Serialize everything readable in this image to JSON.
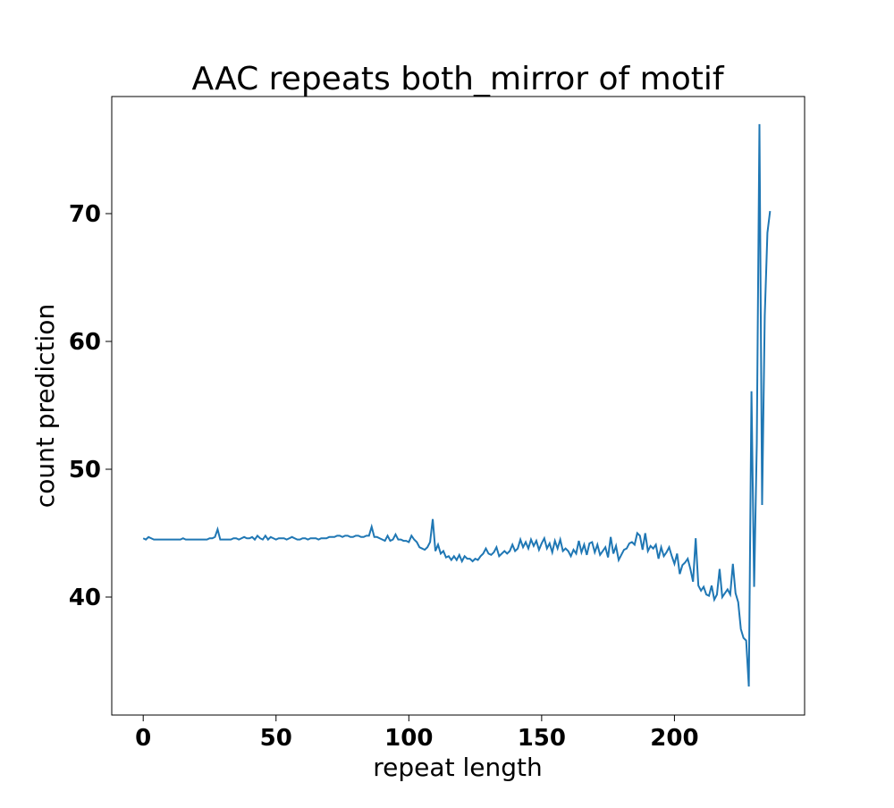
{
  "chart_data": {
    "type": "line",
    "title": "AAC repeats both_mirror of motif",
    "xlabel": "repeat length",
    "ylabel": "count prediction",
    "xlim": [
      -11.85,
      249
    ],
    "ylim": [
      30.77,
      79.16
    ],
    "xticks": [
      0,
      50,
      100,
      150,
      200
    ],
    "yticks": [
      40,
      50,
      60,
      70
    ],
    "x": [
      0,
      1,
      2,
      3,
      4,
      5,
      6,
      7,
      8,
      9,
      10,
      11,
      12,
      13,
      14,
      15,
      16,
      17,
      18,
      19,
      20,
      21,
      22,
      23,
      24,
      25,
      26,
      27,
      28,
      29,
      30,
      31,
      32,
      33,
      34,
      35,
      36,
      37,
      38,
      39,
      40,
      41,
      42,
      43,
      44,
      45,
      46,
      47,
      48,
      49,
      50,
      51,
      52,
      53,
      54,
      55,
      56,
      57,
      58,
      59,
      60,
      61,
      62,
      63,
      64,
      65,
      66,
      67,
      68,
      69,
      70,
      71,
      72,
      73,
      74,
      75,
      76,
      77,
      78,
      79,
      80,
      81,
      82,
      83,
      84,
      85,
      86,
      87,
      88,
      89,
      90,
      91,
      92,
      93,
      94,
      95,
      96,
      97,
      98,
      99,
      100,
      101,
      102,
      103,
      104,
      105,
      106,
      107,
      108,
      109,
      110,
      111,
      112,
      113,
      114,
      115,
      116,
      117,
      118,
      119,
      120,
      121,
      122,
      123,
      124,
      125,
      126,
      127,
      128,
      129,
      130,
      131,
      132,
      133,
      134,
      135,
      136,
      137,
      138,
      139,
      140,
      141,
      142,
      143,
      144,
      145,
      146,
      147,
      148,
      149,
      150,
      151,
      152,
      153,
      154,
      155,
      156,
      157,
      158,
      159,
      160,
      161,
      162,
      163,
      164,
      165,
      166,
      167,
      168,
      169,
      170,
      171,
      172,
      173,
      174,
      175,
      176,
      177,
      178,
      179,
      180,
      181,
      182,
      183,
      184,
      185,
      186,
      187,
      188,
      189,
      190,
      191,
      192,
      193,
      194,
      195,
      196,
      197,
      198,
      199,
      200,
      201,
      202,
      203,
      204,
      205,
      206,
      207,
      208,
      209,
      210,
      211,
      212,
      213,
      214,
      215,
      216,
      217,
      218,
      219,
      220,
      221,
      222,
      223,
      224,
      225,
      226,
      227,
      228,
      229,
      230,
      231,
      232,
      233,
      234,
      235,
      236
    ],
    "series": [
      {
        "name": "count prediction",
        "color": "#1f77b4",
        "values": [
          44.6,
          44.5,
          44.7,
          44.6,
          44.5,
          44.5,
          44.5,
          44.5,
          44.5,
          44.5,
          44.5,
          44.5,
          44.5,
          44.5,
          44.5,
          44.6,
          44.5,
          44.5,
          44.5,
          44.5,
          44.5,
          44.5,
          44.5,
          44.5,
          44.5,
          44.6,
          44.6,
          44.7,
          45.3,
          44.5,
          44.5,
          44.5,
          44.5,
          44.5,
          44.6,
          44.6,
          44.5,
          44.6,
          44.7,
          44.6,
          44.6,
          44.7,
          44.5,
          44.8,
          44.6,
          44.5,
          44.8,
          44.5,
          44.7,
          44.6,
          44.5,
          44.6,
          44.6,
          44.6,
          44.5,
          44.6,
          44.7,
          44.6,
          44.5,
          44.5,
          44.6,
          44.6,
          44.5,
          44.6,
          44.6,
          44.6,
          44.5,
          44.6,
          44.6,
          44.6,
          44.7,
          44.7,
          44.7,
          44.8,
          44.8,
          44.7,
          44.8,
          44.8,
          44.7,
          44.7,
          44.8,
          44.8,
          44.7,
          44.7,
          44.8,
          44.8,
          45.5,
          44.7,
          44.7,
          44.6,
          44.5,
          44.4,
          44.8,
          44.4,
          44.5,
          44.9,
          44.5,
          44.5,
          44.4,
          44.4,
          44.3,
          44.8,
          44.5,
          44.3,
          43.9,
          43.8,
          43.7,
          43.9,
          44.3,
          46.1,
          43.6,
          44.1,
          43.4,
          43.6,
          43.1,
          43.2,
          42.9,
          43.2,
          42.9,
          43.3,
          42.8,
          43.2,
          43.0,
          43.0,
          42.8,
          43.0,
          42.9,
          43.2,
          43.4,
          43.8,
          43.4,
          43.3,
          43.5,
          43.9,
          43.2,
          43.4,
          43.6,
          43.4,
          43.6,
          44.1,
          43.6,
          43.8,
          44.5,
          43.9,
          44.3,
          43.8,
          44.5,
          44.0,
          44.4,
          43.7,
          44.2,
          44.6,
          43.8,
          44.2,
          43.5,
          44.4,
          43.8,
          44.5,
          43.6,
          43.8,
          43.6,
          43.2,
          43.7,
          43.4,
          44.4,
          43.5,
          44.1,
          43.3,
          44.2,
          44.3,
          43.5,
          44.1,
          43.3,
          43.6,
          43.9,
          43.1,
          44.7,
          43.4,
          44.0,
          42.9,
          43.3,
          43.7,
          43.8,
          44.2,
          44.3,
          44.1,
          45.0,
          44.8,
          43.7,
          45.0,
          43.6,
          44.0,
          43.8,
          44.1,
          43.0,
          43.9,
          43.2,
          43.5,
          43.9,
          43.2,
          42.6,
          43.4,
          41.8,
          42.5,
          42.7,
          43.0,
          42.2,
          41.2,
          44.6,
          40.9,
          40.5,
          40.8,
          40.2,
          40.1,
          40.9,
          39.8,
          40.2,
          42.2,
          40.0,
          40.3,
          40.6,
          40.2,
          42.6,
          40.3,
          39.6,
          37.5,
          36.8,
          36.6,
          33.0,
          56.1,
          40.8,
          52.0,
          77.0,
          47.2,
          62.0,
          68.5,
          70.2
        ]
      }
    ]
  }
}
